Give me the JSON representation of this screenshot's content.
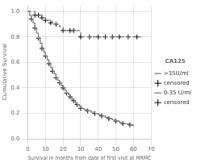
{
  "chart_data": {
    "type": "line",
    "xlabel": "Survival in months from date of first visit at MRMC",
    "ylabel": "Cumulative Survival",
    "xlim": [
      0,
      70
    ],
    "ylim": [
      0.0,
      1.05
    ],
    "xticks": [
      0,
      10,
      20,
      30,
      40,
      50,
      60,
      70
    ],
    "yticks": [
      {
        "value": 0.0,
        "label": "0.0"
      },
      0.2,
      0.4,
      0.6,
      0.8,
      {
        "value": 1.0,
        "label": "1.0"
      }
    ],
    "legend": "right",
    "legend_title": "CA125",
    "series": [
      {
        "name": ">35U/ml",
        "type": "step",
        "color": "#777777",
        "line_style": "dashed",
        "x": [
          0,
          2,
          4,
          6,
          8,
          10,
          12,
          14,
          16,
          18,
          20,
          22,
          24,
          26,
          28,
          30,
          35,
          40,
          45,
          50,
          55,
          60,
          65
        ],
        "values": [
          1.0,
          1.0,
          0.97,
          0.97,
          0.95,
          0.93,
          0.93,
          0.91,
          0.9,
          0.88,
          0.85,
          0.85,
          0.85,
          0.85,
          0.85,
          0.8,
          0.8,
          0.8,
          0.8,
          0.8,
          0.8,
          0.8,
          0.8
        ]
      },
      {
        "name": "censored",
        "type": "scatter",
        "color": "#000000",
        "marker": "+",
        "x": [
          4,
          6,
          8,
          10,
          13,
          16,
          20,
          24,
          26,
          30,
          35,
          40,
          44,
          48,
          52,
          57,
          62
        ],
        "values": [
          0.97,
          0.97,
          0.95,
          0.93,
          0.91,
          0.9,
          0.85,
          0.85,
          0.85,
          0.8,
          0.8,
          0.8,
          0.8,
          0.8,
          0.8,
          0.8,
          0.8
        ]
      },
      {
        "name": "0-35 U/ml",
        "type": "step",
        "color": "#777777",
        "line_style": "solid",
        "x": [
          0,
          1,
          2,
          3,
          4,
          5,
          6,
          7,
          8,
          9,
          10,
          11,
          12,
          13,
          14,
          15,
          16,
          17,
          18,
          19,
          20,
          21,
          22,
          23,
          24,
          25,
          26,
          27,
          28,
          29,
          30,
          32,
          34,
          36,
          38,
          40,
          42,
          44,
          46,
          48,
          50,
          52,
          54,
          56,
          58,
          60
        ],
        "values": [
          1.0,
          0.97,
          0.94,
          0.91,
          0.87,
          0.83,
          0.79,
          0.75,
          0.71,
          0.68,
          0.65,
          0.62,
          0.59,
          0.56,
          0.53,
          0.51,
          0.48,
          0.46,
          0.44,
          0.42,
          0.4,
          0.38,
          0.36,
          0.35,
          0.33,
          0.31,
          0.3,
          0.28,
          0.27,
          0.26,
          0.24,
          0.23,
          0.22,
          0.21,
          0.2,
          0.19,
          0.18,
          0.17,
          0.16,
          0.15,
          0.14,
          0.13,
          0.12,
          0.12,
          0.11,
          0.1
        ]
      },
      {
        "name": "censored",
        "type": "scatter",
        "color": "#000000",
        "marker": "+",
        "x": [
          2,
          4,
          6,
          8,
          10,
          12,
          14,
          16,
          18,
          20,
          22,
          24,
          26,
          28,
          30,
          34,
          38,
          42,
          46,
          50,
          54,
          58
        ],
        "values": [
          0.94,
          0.87,
          0.79,
          0.71,
          0.65,
          0.59,
          0.53,
          0.48,
          0.44,
          0.4,
          0.36,
          0.33,
          0.3,
          0.27,
          0.24,
          0.22,
          0.2,
          0.18,
          0.16,
          0.14,
          0.12,
          0.11
        ]
      }
    ]
  }
}
